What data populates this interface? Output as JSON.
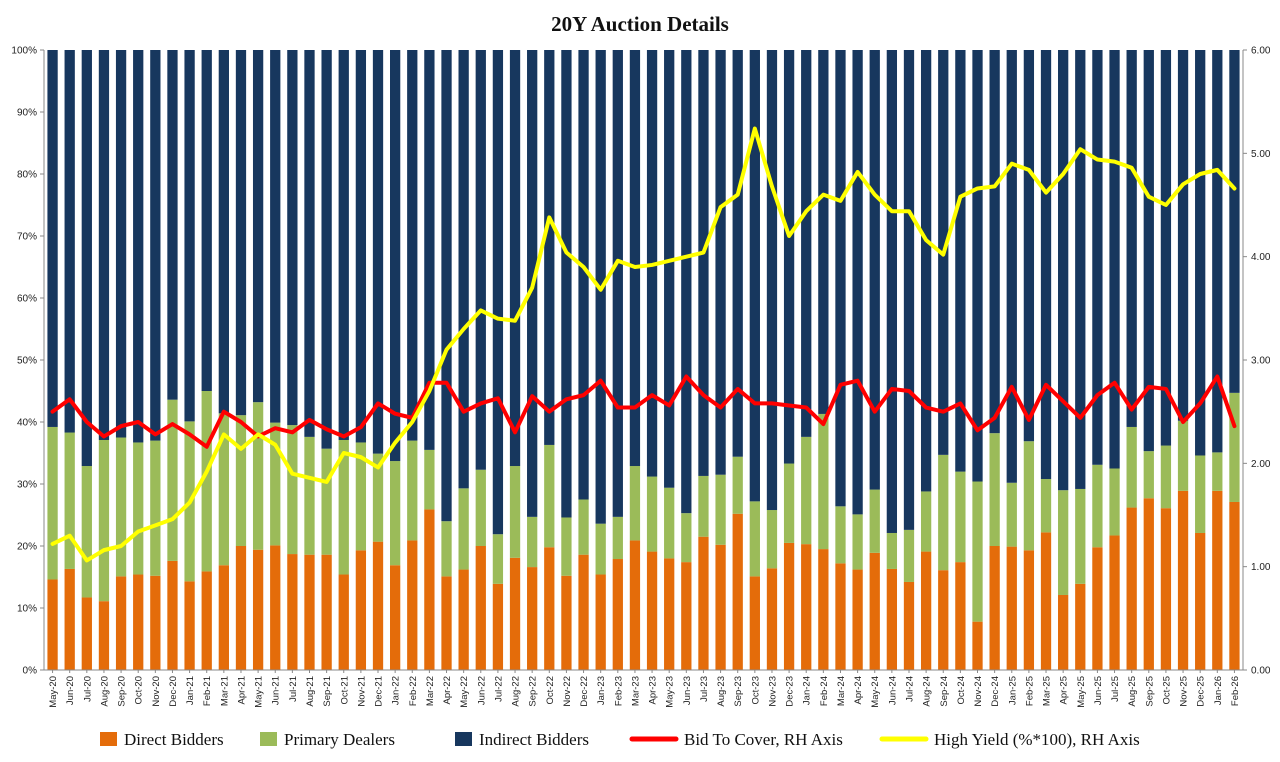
{
  "chart_data": {
    "type": "bar",
    "title": "20Y Auction Details",
    "stacked": true,
    "grid": false,
    "legend_placement": "bottom",
    "left_axis": {
      "ylim": [
        0,
        100
      ],
      "ticks": [
        "0%",
        "10%",
        "20%",
        "30%",
        "40%",
        "50%",
        "60%",
        "70%",
        "80%",
        "90%",
        "100%"
      ]
    },
    "right_axis": {
      "ylim": [
        0,
        6
      ],
      "ticks": [
        "0.00",
        "1.00",
        "2.00",
        "3.00",
        "4.00",
        "5.00",
        "6.00"
      ]
    },
    "categories": [
      "May-20",
      "Jun-20",
      "Jul-20",
      "Aug-20",
      "Sep-20",
      "Oct-20",
      "Nov-20",
      "Dec-20",
      "Jan-21",
      "Feb-21",
      "Mar-21",
      "Apr-21",
      "May-21",
      "Jun-21",
      "Jul-21",
      "Aug-21",
      "Sep-21",
      "Oct-21",
      "Nov-21",
      "Dec-21",
      "Jan-22",
      "Feb-22",
      "Mar-22",
      "Apr-22",
      "May-22",
      "Jun-22",
      "Jul-22",
      "Aug-22",
      "Sep-22",
      "Oct-22",
      "Nov-22",
      "Dec-22",
      "Jan-23",
      "Feb-23",
      "Mar-23",
      "Apr-23",
      "May-23",
      "Jun-23",
      "Jul-23",
      "Aug-23",
      "Sep-23",
      "Oct-23",
      "Nov-23",
      "Dec-23",
      "Jan-24",
      "Feb-24",
      "Mar-24",
      "Apr-24",
      "May-24",
      "Jun-24",
      "Jul-24",
      "Aug-24",
      "Sep-24",
      "Oct-24",
      "Nov-24",
      "Dec-24",
      "Jan-25",
      "Feb-25",
      "Mar-25",
      "Apr-25",
      "May-25",
      "Jun-25",
      "Jul-25",
      "Aug-25",
      "Sep-25",
      "Oct-25",
      "Nov-25",
      "Dec-25",
      "Jan-26",
      "Feb-26"
    ],
    "series": [
      {
        "name": "Direct Bidders",
        "axis": "left",
        "kind": "bar",
        "color": "#e46c0a",
        "values": [
          14.6,
          16.3,
          11.7,
          11.1,
          15.1,
          15.4,
          15.2,
          17.6,
          14.3,
          15.9,
          16.9,
          20.0,
          19.4,
          20.1,
          18.7,
          18.6,
          18.6,
          15.4,
          19.3,
          20.7,
          16.9,
          20.9,
          25.9,
          15.1,
          16.2,
          20.0,
          13.9,
          18.1,
          16.6,
          19.8,
          15.2,
          18.6,
          15.4,
          17.9,
          20.9,
          19.1,
          18.0,
          17.4,
          21.5,
          20.2,
          25.2,
          15.1,
          16.4,
          20.5,
          20.3,
          19.5,
          17.2,
          16.2,
          18.9,
          16.3,
          14.2,
          19.1,
          16.1,
          17.4,
          7.8,
          20.0,
          19.9,
          19.3,
          22.2,
          12.1,
          13.9,
          19.8,
          21.7,
          26.2,
          27.7,
          26.1,
          28.9,
          22.1,
          28.9,
          27.1
        ]
      },
      {
        "name": "Primary Dealers",
        "axis": "left",
        "kind": "bar",
        "color": "#9bbb59",
        "values": [
          24.6,
          22.0,
          21.2,
          26.0,
          22.4,
          21.3,
          21.8,
          26.0,
          25.8,
          29.1,
          24.5,
          21.1,
          23.8,
          19.8,
          20.8,
          19.0,
          17.1,
          21.7,
          17.4,
          14.2,
          16.8,
          16.1,
          9.6,
          8.9,
          13.1,
          12.3,
          8.0,
          14.8,
          8.1,
          16.5,
          9.4,
          8.9,
          8.2,
          6.8,
          12.0,
          12.1,
          11.4,
          7.9,
          9.8,
          11.3,
          9.2,
          12.1,
          9.4,
          12.8,
          17.3,
          21.8,
          9.2,
          8.9,
          10.2,
          5.8,
          8.4,
          9.7,
          18.6,
          14.6,
          22.6,
          18.2,
          10.3,
          17.6,
          8.6,
          16.9,
          15.3,
          13.3,
          10.8,
          13.0,
          7.6,
          10.1,
          11.3,
          12.5,
          6.2,
          17.6
        ]
      },
      {
        "name": "Indirect Bidders",
        "axis": "left",
        "kind": "bar",
        "color": "#17375e",
        "values": [
          60.8,
          61.7,
          67.1,
          62.9,
          62.5,
          63.3,
          63.0,
          56.4,
          59.9,
          55.0,
          58.6,
          58.9,
          56.8,
          60.1,
          60.5,
          62.4,
          64.3,
          62.9,
          63.3,
          65.1,
          66.3,
          63.0,
          64.5,
          76.0,
          70.7,
          67.7,
          78.1,
          67.1,
          75.3,
          63.7,
          75.4,
          72.5,
          76.4,
          75.3,
          67.1,
          68.8,
          70.6,
          74.7,
          68.7,
          68.5,
          65.6,
          72.8,
          74.2,
          66.7,
          62.4,
          58.7,
          73.6,
          74.9,
          70.9,
          77.9,
          77.4,
          71.2,
          65.3,
          68.0,
          69.6,
          61.8,
          69.8,
          63.1,
          69.2,
          71.0,
          70.8,
          66.9,
          67.5,
          60.8,
          64.7,
          63.8,
          59.8,
          65.4,
          64.9,
          55.3
        ]
      },
      {
        "name": "Bid To Cover, RH Axis",
        "axis": "right",
        "kind": "line",
        "color": "#ff0000",
        "values": [
          2.5,
          2.62,
          2.4,
          2.26,
          2.36,
          2.4,
          2.28,
          2.38,
          2.28,
          2.16,
          2.5,
          2.4,
          2.26,
          2.34,
          2.3,
          2.42,
          2.33,
          2.26,
          2.35,
          2.58,
          2.48,
          2.44,
          2.78,
          2.78,
          2.5,
          2.58,
          2.63,
          2.3,
          2.65,
          2.5,
          2.62,
          2.66,
          2.8,
          2.54,
          2.54,
          2.66,
          2.56,
          2.84,
          2.66,
          2.54,
          2.72,
          2.58,
          2.58,
          2.56,
          2.54,
          2.38,
          2.76,
          2.8,
          2.5,
          2.72,
          2.7,
          2.54,
          2.5,
          2.58,
          2.32,
          2.44,
          2.74,
          2.42,
          2.76,
          2.6,
          2.44,
          2.66,
          2.78,
          2.52,
          2.74,
          2.72,
          2.4,
          2.58,
          2.84,
          2.36
        ]
      },
      {
        "name": "High Yield (%*100), RH Axis",
        "axis": "right",
        "kind": "line",
        "color": "#ffff00",
        "values": [
          1.22,
          1.3,
          1.06,
          1.16,
          1.2,
          1.34,
          1.4,
          1.46,
          1.62,
          1.92,
          2.28,
          2.14,
          2.28,
          2.18,
          1.9,
          1.86,
          1.82,
          2.1,
          2.06,
          1.96,
          2.2,
          2.4,
          2.7,
          3.1,
          3.3,
          3.48,
          3.4,
          3.38,
          3.7,
          4.38,
          4.04,
          3.9,
          3.68,
          3.96,
          3.9,
          3.92,
          3.96,
          4.0,
          4.04,
          4.48,
          4.6,
          5.24,
          4.68,
          4.2,
          4.44,
          4.6,
          4.54,
          4.82,
          4.6,
          4.44,
          4.44,
          4.16,
          4.02,
          4.58,
          4.66,
          4.68,
          4.9,
          4.84,
          4.62,
          4.8,
          5.04,
          4.94,
          4.92,
          4.86,
          4.58,
          4.5,
          4.7,
          4.8,
          4.84,
          4.66
        ]
      }
    ],
    "legend": [
      "Direct Bidders",
      "Primary Dealers",
      "Indirect Bidders",
      "Bid To Cover, RH Axis",
      "High Yield (%*100), RH Axis"
    ]
  }
}
